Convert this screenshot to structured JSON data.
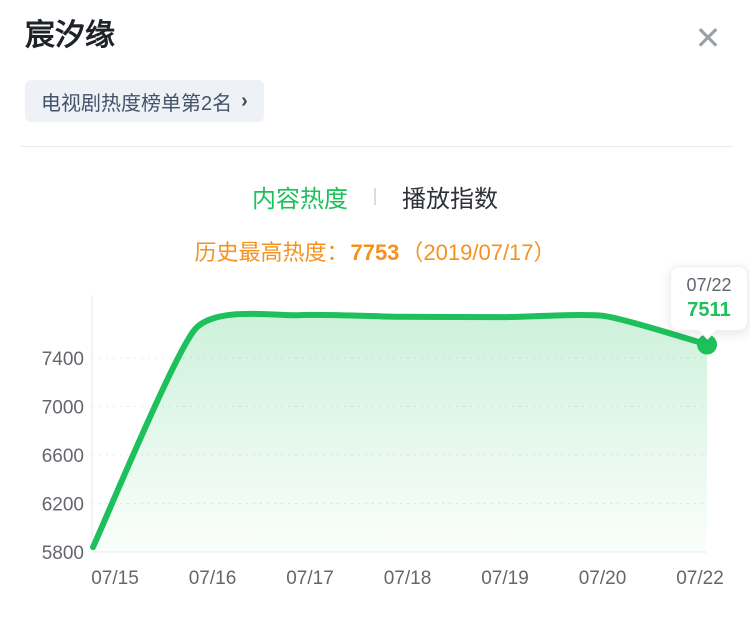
{
  "header": {
    "title": "宸汐缘",
    "close_icon": "✕",
    "badge": {
      "label": "电视剧热度榜单第2名",
      "chevron": "›"
    }
  },
  "tabs": [
    {
      "label": "内容热度",
      "active": true
    },
    {
      "label": "播放指数",
      "active": false
    }
  ],
  "peak_note": {
    "prefix": "历史最高热度：",
    "value": "7753",
    "date": "（2019/07/17）"
  },
  "tooltip": {
    "date": "07/22",
    "value": "7511"
  },
  "colors": {
    "green": "#1ec05c",
    "green_fill_top": "rgba(30,192,92,0.22)",
    "green_fill_bottom": "rgba(30,192,92,0.02)",
    "orange": "#f5911e",
    "axis_text": "#63676d",
    "grid_line": "#e7e9eb"
  },
  "chart_data": {
    "type": "area",
    "title": "内容热度趋势",
    "x": [
      "07/15",
      "07/16",
      "07/17",
      "07/18",
      "07/19",
      "07/20",
      "07/22"
    ],
    "series": [
      {
        "name": "内容热度",
        "values": [
          5840,
          7640,
          7753,
          7740,
          7737,
          7746,
          7511
        ]
      }
    ],
    "yticks": [
      5800,
      6200,
      6600,
      7000,
      7400
    ],
    "ylim": [
      5800,
      7900
    ],
    "xlabel": "",
    "ylabel": "",
    "grid": "dashed-horizontal",
    "legend": "none",
    "line_color": "#1ec05c",
    "peak": {
      "value": 7753,
      "date": "2019/07/17"
    },
    "last_point": {
      "x": "07/22",
      "value": 7511
    }
  }
}
